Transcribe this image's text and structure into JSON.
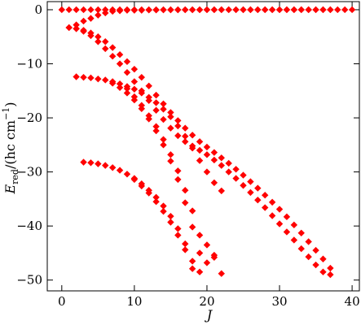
{
  "chart_data": {
    "type": "scatter",
    "xlabel": "J",
    "ylabel": "E_red/(hc cm^-1)",
    "ylabel_parts": {
      "main": "E",
      "sub": "red",
      "rest": "/(hc cm",
      "sup": "−1",
      "close": ")"
    },
    "xlim": [
      -2,
      41
    ],
    "ylim": [
      -52,
      1.5
    ],
    "xticks": [
      0,
      10,
      20,
      30,
      40
    ],
    "yticks": [
      0,
      -10,
      -20,
      -30,
      -40,
      -50
    ],
    "xtick_labels": [
      "0",
      "10",
      "20",
      "30",
      "40"
    ],
    "ytick_labels": [
      "0",
      "−10",
      "−20",
      "−30",
      "−40",
      "−50"
    ],
    "grid": false,
    "marker": "diamond",
    "color": "#ff0000",
    "series": [
      {
        "x": [
          0,
          1,
          2,
          3,
          4,
          5,
          6,
          7,
          8,
          9,
          10,
          11,
          12,
          13,
          14,
          15,
          16,
          17,
          18,
          19,
          20,
          21,
          22,
          23,
          24,
          25,
          26,
          27,
          28,
          29,
          30,
          31,
          32,
          33,
          34,
          35,
          36,
          37,
          38,
          39,
          40
        ],
        "y": [
          0,
          0,
          0,
          0,
          0,
          0,
          0,
          0,
          0,
          0,
          0,
          0,
          0,
          0,
          0,
          0,
          0,
          0,
          0,
          0,
          0,
          0,
          0,
          0,
          0,
          0,
          0,
          0,
          0,
          0,
          0,
          0,
          0,
          0,
          0,
          0,
          0,
          0,
          0,
          0,
          0
        ]
      },
      {
        "x": [
          1,
          2,
          3,
          4,
          5,
          6,
          7,
          8,
          9,
          10,
          11,
          12,
          13,
          14,
          15,
          16,
          17,
          18,
          19,
          20,
          21,
          22,
          23,
          24,
          25,
          26,
          27,
          28,
          29,
          30,
          31,
          32,
          33,
          34,
          35,
          36,
          37
        ],
        "y": [
          -3.3,
          -2.8,
          -2.1,
          -1.6,
          -1.0,
          -0.6,
          -0.3,
          -0.2,
          -0.1,
          -0.1,
          -0.1,
          -0.05,
          -0.05,
          -0.03,
          -0.02,
          -0.02,
          -0.01,
          -0.01,
          -0.01,
          0,
          0,
          0,
          0,
          0,
          0,
          0,
          0,
          0,
          0,
          0,
          0,
          0,
          0,
          0,
          0,
          0,
          0
        ]
      },
      {
        "x": [
          2,
          3,
          4,
          5,
          6,
          7,
          8,
          9,
          10,
          11,
          12,
          13,
          14,
          15,
          16,
          17,
          18,
          19,
          20,
          21,
          22,
          23,
          24,
          25,
          26,
          27,
          28,
          29,
          30,
          31,
          32,
          33,
          34,
          35,
          36,
          37
        ],
        "y": [
          -3.5,
          -3.8,
          -4.3,
          -5.0,
          -5.9,
          -7.0,
          -8.3,
          -9.6,
          -11.0,
          -12.5,
          -14.1,
          -15.8,
          -17.4,
          -19.0,
          -20.5,
          -21.9,
          -23.2,
          -24.4,
          -25.4,
          -26.4,
          -27.4,
          -28.4,
          -29.5,
          -30.6,
          -31.8,
          -33.0,
          -34.3,
          -35.6,
          -36.9,
          -38.3,
          -39.8,
          -41.3,
          -42.9,
          -44.5,
          -46.1,
          -47.8
        ]
      },
      {
        "x": [
          1,
          2,
          3,
          4,
          5,
          6,
          7,
          8,
          9,
          10,
          11,
          12,
          13,
          14,
          15,
          16,
          17,
          18,
          19,
          20,
          21,
          22,
          23,
          24,
          25,
          26,
          27,
          28,
          29,
          30,
          31,
          32,
          33,
          34,
          35,
          36,
          37
        ],
        "y": [
          -3.3,
          -3.5,
          -4.0,
          -4.8,
          -5.9,
          -7.2,
          -8.6,
          -10.0,
          -11.6,
          -13.3,
          -15.0,
          -16.8,
          -18.6,
          -20.3,
          -21.9,
          -23.3,
          -24.4,
          -25.2,
          -26.0,
          -26.8,
          -27.8,
          -28.8,
          -30.0,
          -31.2,
          -32.5,
          -33.8,
          -35.2,
          -36.6,
          -38.1,
          -39.6,
          -41.1,
          -42.6,
          -44.2,
          -45.7,
          -47.2,
          -48.5,
          -49.0
        ]
      },
      {
        "x": [
          2,
          3,
          4,
          5,
          6,
          7,
          8,
          9,
          10,
          11,
          12,
          13,
          14,
          15,
          16,
          17,
          18,
          19,
          20,
          21,
          22
        ],
        "y": [
          -12.4,
          -12.5,
          -12.6,
          -12.8,
          -13.0,
          -13.3,
          -13.7,
          -14.2,
          -14.7,
          -15.4,
          -16.2,
          -17.2,
          -18.4,
          -19.8,
          -21.5,
          -23.4,
          -25.6,
          -27.9,
          -30.0,
          -32.0,
          -33.5
        ]
      },
      {
        "x": [
          7,
          8,
          9,
          10,
          11,
          12,
          13,
          14,
          15,
          16,
          17,
          18,
          19
        ],
        "y": [
          -13.6,
          -14.4,
          -15.4,
          -16.7,
          -18.3,
          -20.2,
          -22.4,
          -25.0,
          -28.0,
          -31.4,
          -35.7,
          -40.2,
          -45.0
        ]
      },
      {
        "x": [
          9,
          10,
          11,
          12,
          13,
          14,
          15,
          16,
          17,
          18,
          19,
          20,
          21,
          22
        ],
        "y": [
          -14.6,
          -16.1,
          -17.7,
          -19.6,
          -21.6,
          -24.0,
          -26.8,
          -29.8,
          -33.4,
          -37.2,
          -41.7,
          -43.5,
          -45.4,
          -48.8
        ]
      },
      {
        "x": [
          3,
          4,
          5,
          6,
          7,
          8,
          9,
          10,
          11,
          12,
          13,
          14,
          15,
          16,
          17,
          18
        ],
        "y": [
          -28.2,
          -28.3,
          -28.5,
          -28.8,
          -29.2,
          -29.7,
          -30.4,
          -31.2,
          -32.2,
          -33.4,
          -34.7,
          -36.3,
          -38.2,
          -40.5,
          -43.3,
          -47.9
        ]
      },
      {
        "x": [
          10,
          11,
          12,
          13,
          14,
          15,
          16,
          17,
          18,
          19,
          20,
          21
        ],
        "y": [
          -31.4,
          -32.6,
          -33.9,
          -35.5,
          -37.3,
          -39.3,
          -41.7,
          -44.4,
          -46.5,
          -48.5,
          -46.8,
          -45.8
        ]
      }
    ]
  }
}
